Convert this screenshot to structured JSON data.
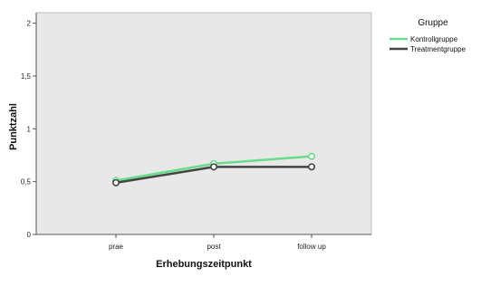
{
  "chart_data": {
    "type": "line",
    "xlabel": "Erhebungszeitpunkt",
    "ylabel": "Punktzahl",
    "categories": [
      "prae",
      "post",
      "follow up"
    ],
    "ylim": [
      0,
      2.1
    ],
    "yticks": [
      0,
      0.5,
      1,
      1.5,
      2
    ],
    "ytick_labels": [
      "0",
      "0,5",
      "1",
      "1,5",
      "2"
    ],
    "grid": false,
    "legend": {
      "title": "Gruppe",
      "placement": "right"
    },
    "series": [
      {
        "name": "Kontrollgruppe",
        "values": [
          0.51,
          0.67,
          0.74
        ],
        "color": "#66dd88"
      },
      {
        "name": "Treatmentgruppe",
        "values": [
          0.49,
          0.64,
          0.64
        ],
        "color": "#444444"
      }
    ],
    "plot_background": "#e8e8e8"
  }
}
